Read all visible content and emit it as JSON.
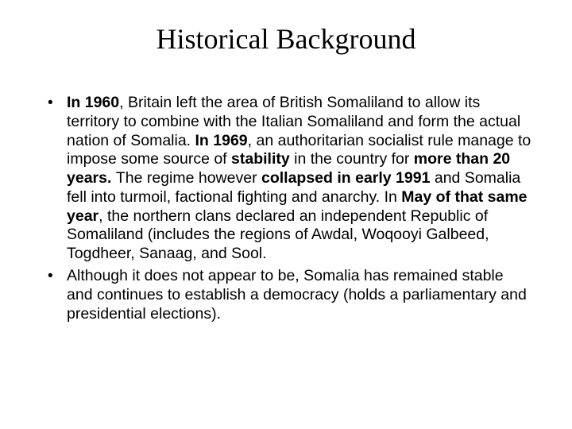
{
  "slide": {
    "title": "Historical Background",
    "bullets": [
      {
        "segments": [
          {
            "t": "In 1960",
            "b": true
          },
          {
            "t": ", Britain left the area of British Somaliland to allow its territory to combine with the Italian Somaliland and form the actual nation of Somalia. ",
            "b": false
          },
          {
            "t": "In 1969",
            "b": true
          },
          {
            "t": ", an authoritarian socialist rule manage to impose some source of ",
            "b": false
          },
          {
            "t": "stability",
            "b": true
          },
          {
            "t": " in the country for ",
            "b": false
          },
          {
            "t": "more than 20 years. ",
            "b": true
          },
          {
            "t": "The regime however ",
            "b": false
          },
          {
            "t": "collapsed in early 1991 ",
            "b": true
          },
          {
            "t": "and Somalia fell into turmoil, factional fighting and anarchy. In ",
            "b": false
          },
          {
            "t": "May of that same year",
            "b": true
          },
          {
            "t": ", the northern clans declared an independent Republic of Somaliland (includes the regions of Awdal, Woqooyi Galbeed, Togdheer, Sanaag, and Sool.",
            "b": false
          }
        ]
      },
      {
        "segments": [
          {
            "t": "Although it does not appear to be, Somalia has remained stable and continues to establish a democracy (holds a parliamentary and presidential elections).",
            "b": false
          }
        ]
      }
    ]
  },
  "style": {
    "background_color": "#ffffff",
    "text_color": "#000000",
    "title_font_family": "cursive",
    "title_fontsize_pt": 28,
    "body_font_family": "Arial",
    "body_fontsize_pt": 15,
    "line_height": 1.22
  }
}
